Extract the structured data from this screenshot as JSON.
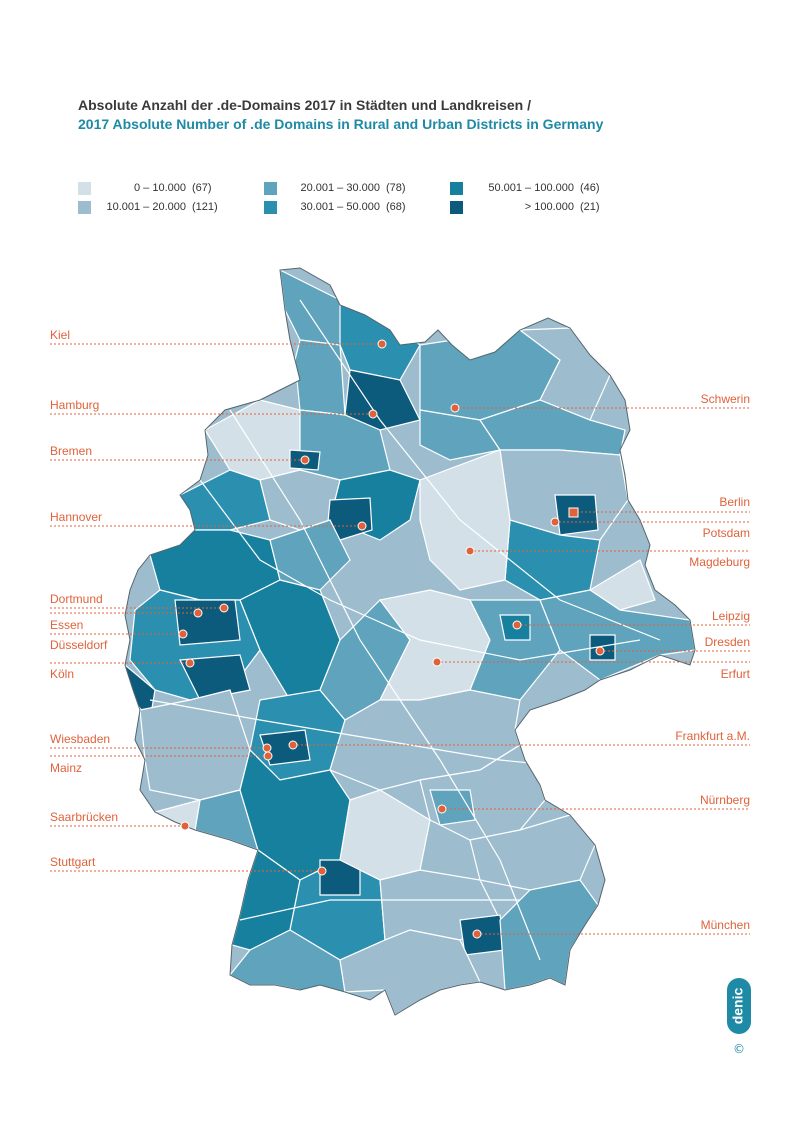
{
  "title": {
    "german": "Absolute Anzahl der .de-Domains 2017 in Städten und Landkreisen /",
    "english": "2017 Absolute Number of .de Domains in Rural and Urban Districts in Germany"
  },
  "legend": [
    {
      "range": "0  –  10.000",
      "count": "(67)",
      "color": "#d3e0e8"
    },
    {
      "range": "10.001  –  20.000",
      "count": "(121)",
      "color": "#9dbdcf"
    },
    {
      "range": "20.001  –  30.000",
      "count": "(78)",
      "color": "#5fa3bd"
    },
    {
      "range": "30.001  –  50.000",
      "count": "(68)",
      "color": "#2b8fb0"
    },
    {
      "range": "50.001  –  100.000",
      "count": "(46)",
      "color": "#17809e"
    },
    {
      "range": "> 100.000",
      "count": "(21)",
      "color": "#0c5a7c"
    }
  ],
  "cities": {
    "kiel": "Kiel",
    "hamburg": "Hamburg",
    "bremen": "Bremen",
    "hannover": "Hannover",
    "dortmund": "Dortmund",
    "essen": "Essen",
    "duesseldorf": "Düsseldorf",
    "koeln": "Köln",
    "wiesbaden": "Wiesbaden",
    "mainz": "Mainz",
    "saarbruecken": "Saarbrücken",
    "stuttgart": "Stuttgart",
    "schwerin": "Schwerin",
    "berlin": "Berlin",
    "potsdam": "Potsdam",
    "magdeburg": "Magdeburg",
    "leipzig": "Leipzig",
    "dresden": "Dresden",
    "erfurt": "Erfurt",
    "frankfurt": "Frankfurt a.M.",
    "nuernberg": "Nürnberg",
    "muenchen": "München"
  },
  "brand": {
    "logo_text": "denic",
    "copyright": "©"
  },
  "colors": {
    "accent_orange": "#e0623a",
    "title_teal": "#1e8aa5",
    "border": "#ffffff"
  }
}
